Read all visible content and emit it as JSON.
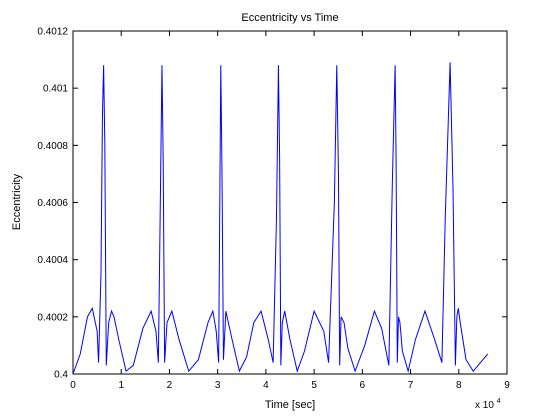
{
  "chart_data": {
    "type": "line",
    "title": "Eccentricity vs Time",
    "xlabel": "Time [sec]",
    "ylabel": "Eccentricity",
    "x_multiplier_label": "x 10",
    "x_multiplier_exponent": "4",
    "xlim": [
      0,
      9
    ],
    "ylim": [
      0.4,
      0.4012
    ],
    "x_ticks": [
      "0",
      "1",
      "2",
      "3",
      "4",
      "5",
      "6",
      "7",
      "8",
      "9"
    ],
    "y_ticks": [
      "0.4",
      "0.4002",
      "0.4004",
      "0.4006",
      "0.4008",
      "0.401",
      "0.4012"
    ],
    "grid": false,
    "colors": {
      "line": "#0000ff",
      "axes": "#000000",
      "background": "#ffffff"
    },
    "series": [
      {
        "x": [
          0,
          0.15,
          0.3,
          0.4,
          0.5,
          0.53,
          0.58,
          0.61,
          0.635,
          0.66,
          0.69,
          0.74,
          0.8,
          0.85,
          0.95,
          1.1,
          1.25,
          1.45,
          1.62,
          1.72,
          1.77,
          1.8,
          1.845,
          1.87,
          1.9,
          1.95,
          2.05,
          2.2,
          2.4,
          2.6,
          2.8,
          2.9,
          2.97,
          3.02,
          3.065,
          3.09,
          3.12,
          3.17,
          3.3,
          3.45,
          3.6,
          3.75,
          3.9,
          4.05,
          4.15,
          4.22,
          4.26,
          4.285,
          4.31,
          4.34,
          4.39,
          4.5,
          4.65,
          4.8,
          5.0,
          5.2,
          5.3,
          5.42,
          5.47,
          5.505,
          5.53,
          5.56,
          5.62,
          5.7,
          5.85,
          6.05,
          6.25,
          6.4,
          6.55,
          6.62,
          6.68,
          6.7,
          6.725,
          6.75,
          6.78,
          6.83,
          6.95,
          7.1,
          7.3,
          7.5,
          7.65,
          7.72,
          7.82,
          7.88,
          7.93,
          7.96,
          7.99,
          8.03,
          8.15,
          8.3,
          8.45,
          8.6
        ],
        "y": [
          0.4,
          0.40007,
          0.4002,
          0.40023,
          0.40015,
          0.40004,
          0.40035,
          0.4009,
          0.40108,
          0.4008,
          0.40003,
          0.40018,
          0.40022,
          0.4002,
          0.40012,
          0.40001,
          0.40003,
          0.40016,
          0.40022,
          0.40015,
          0.40004,
          0.40045,
          0.40108,
          0.40075,
          0.40004,
          0.40018,
          0.40022,
          0.40012,
          0.40001,
          0.40005,
          0.40018,
          0.40022,
          0.40015,
          0.40004,
          0.40108,
          0.4007,
          0.40005,
          0.40022,
          0.40012,
          0.40001,
          0.40006,
          0.40018,
          0.40022,
          0.40012,
          0.40004,
          0.40055,
          0.40108,
          0.40075,
          0.40003,
          0.40018,
          0.40022,
          0.40012,
          0.40001,
          0.40008,
          0.40022,
          0.40015,
          0.40004,
          0.4006,
          0.40108,
          0.4007,
          0.40003,
          0.4002,
          0.40018,
          0.40009,
          0.40001,
          0.4001,
          0.40022,
          0.40016,
          0.40003,
          0.40065,
          0.40108,
          0.40075,
          0.40004,
          0.4002,
          0.40018,
          0.40008,
          0.40001,
          0.40012,
          0.40022,
          0.40012,
          0.40004,
          0.40055,
          0.40109,
          0.40065,
          0.40003,
          0.4002,
          0.40023,
          0.40018,
          0.40005,
          0.40001,
          0.40004,
          0.40007
        ]
      }
    ]
  }
}
